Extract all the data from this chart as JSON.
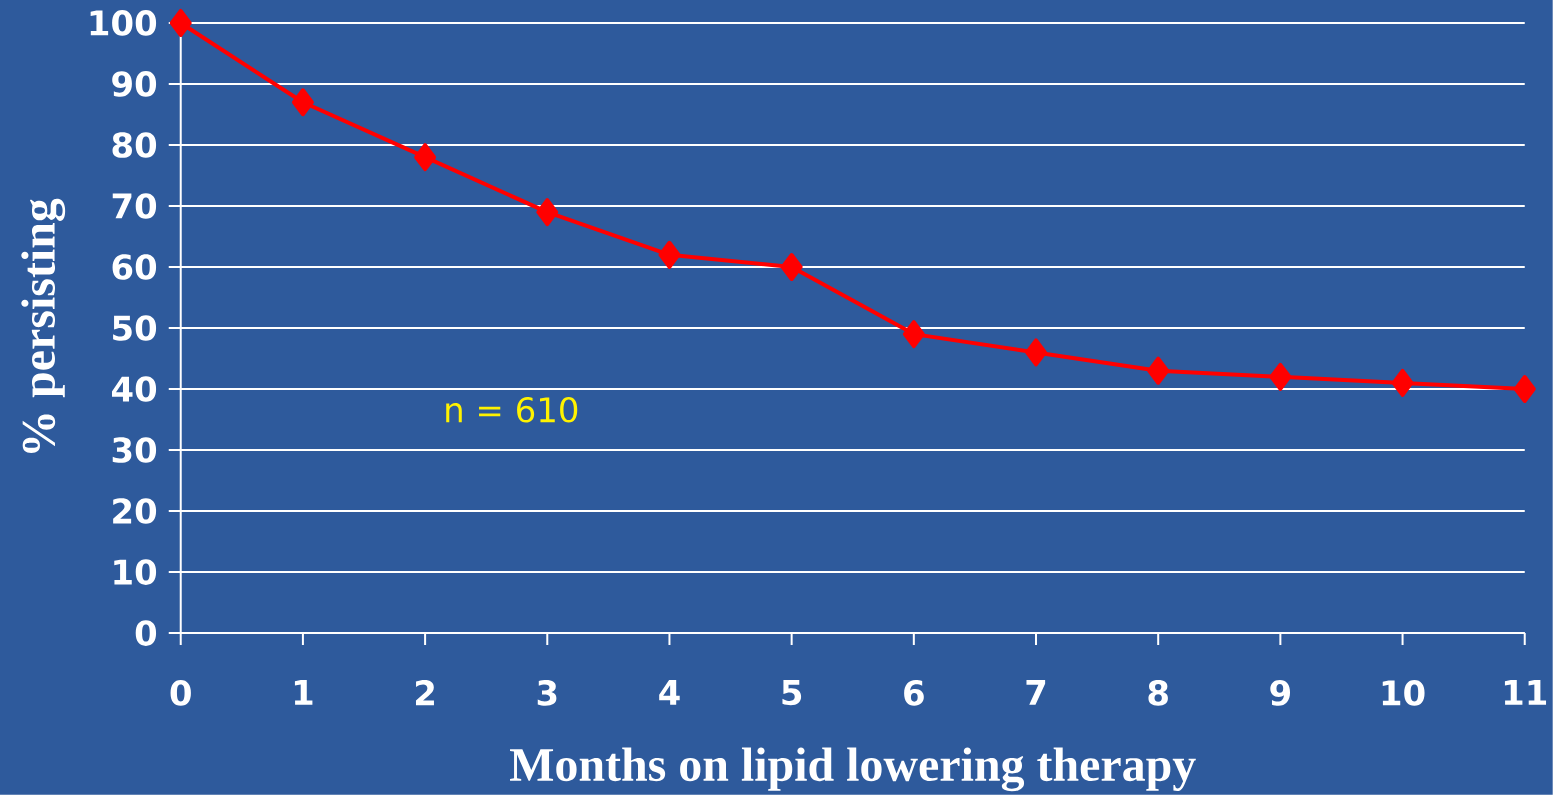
{
  "chart_data": {
    "type": "line",
    "xlabel": "Months on lipid lowering therapy",
    "ylabel": "% persisting",
    "x": [
      0,
      1,
      2,
      3,
      4,
      5,
      6,
      7,
      8,
      9,
      10,
      11
    ],
    "series": [
      {
        "color": "#ff0000",
        "values": [
          100,
          87,
          78,
          69,
          62,
          60,
          49,
          46,
          43,
          42,
          41,
          40
        ]
      }
    ],
    "xlim": [
      0,
      11
    ],
    "xticks": [
      0,
      1,
      2,
      3,
      4,
      5,
      6,
      7,
      8,
      9,
      10,
      11
    ],
    "ylim": [
      0,
      100
    ],
    "yticks": [
      0,
      10,
      20,
      30,
      40,
      50,
      60,
      70,
      80,
      90,
      100
    ],
    "grid": "y",
    "marker": "diamond",
    "line_style": "solid",
    "annotations": [
      "n = 610"
    ]
  }
}
